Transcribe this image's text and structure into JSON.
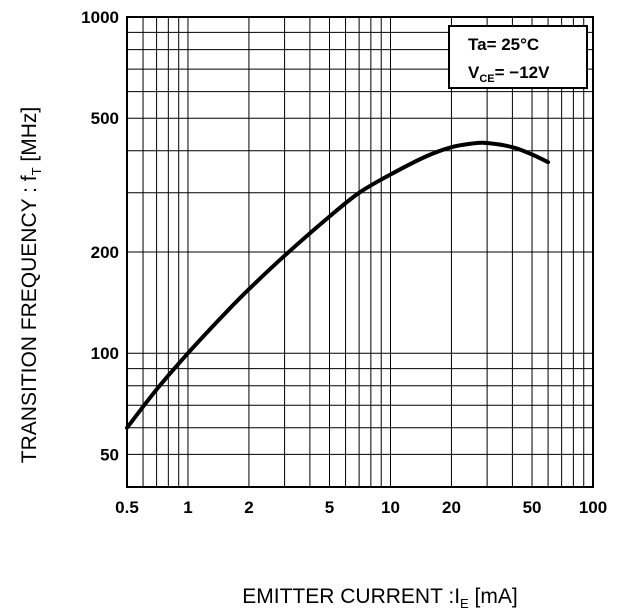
{
  "chart_data": {
    "type": "line",
    "x_scale": "log",
    "y_scale": "log",
    "xlim": [
      0.5,
      100
    ],
    "ylim": [
      40,
      1000
    ],
    "grid": true,
    "xlabel": {
      "main": "EMITTER CURRENT :I",
      "sub": "E",
      "unit": " [mA]"
    },
    "ylabel": {
      "main": "TRANSITION FREQUENCY : f",
      "sub": "T",
      "unit": " [MHz]"
    },
    "x_ticks": [
      {
        "value": 0.5,
        "label": "0.5"
      },
      {
        "value": 1,
        "label": "1"
      },
      {
        "value": 2,
        "label": "2"
      },
      {
        "value": 5,
        "label": "5"
      },
      {
        "value": 10,
        "label": "10"
      },
      {
        "value": 20,
        "label": "20"
      },
      {
        "value": 50,
        "label": "50"
      },
      {
        "value": 100,
        "label": "100"
      }
    ],
    "y_ticks": [
      {
        "value": 50,
        "label": "50"
      },
      {
        "value": 100,
        "label": "100"
      },
      {
        "value": 200,
        "label": "200"
      },
      {
        "value": 500,
        "label": "500"
      },
      {
        "value": 1000,
        "label": "1000"
      }
    ],
    "legend": {
      "line1": "Ta= 25°C",
      "line2_main": "V",
      "line2_sub": "CE",
      "line2_rest": "= −12V",
      "placement": "top-right"
    },
    "series": [
      {
        "x": [
          0.5,
          0.7,
          1,
          1.5,
          2,
          3,
          5,
          7,
          10,
          15,
          20,
          25,
          30,
          40,
          50,
          60
        ],
        "y": [
          60,
          78,
          100,
          130,
          155,
          195,
          255,
          300,
          340,
          385,
          410,
          420,
          422,
          410,
          390,
          370
        ]
      }
    ]
  }
}
